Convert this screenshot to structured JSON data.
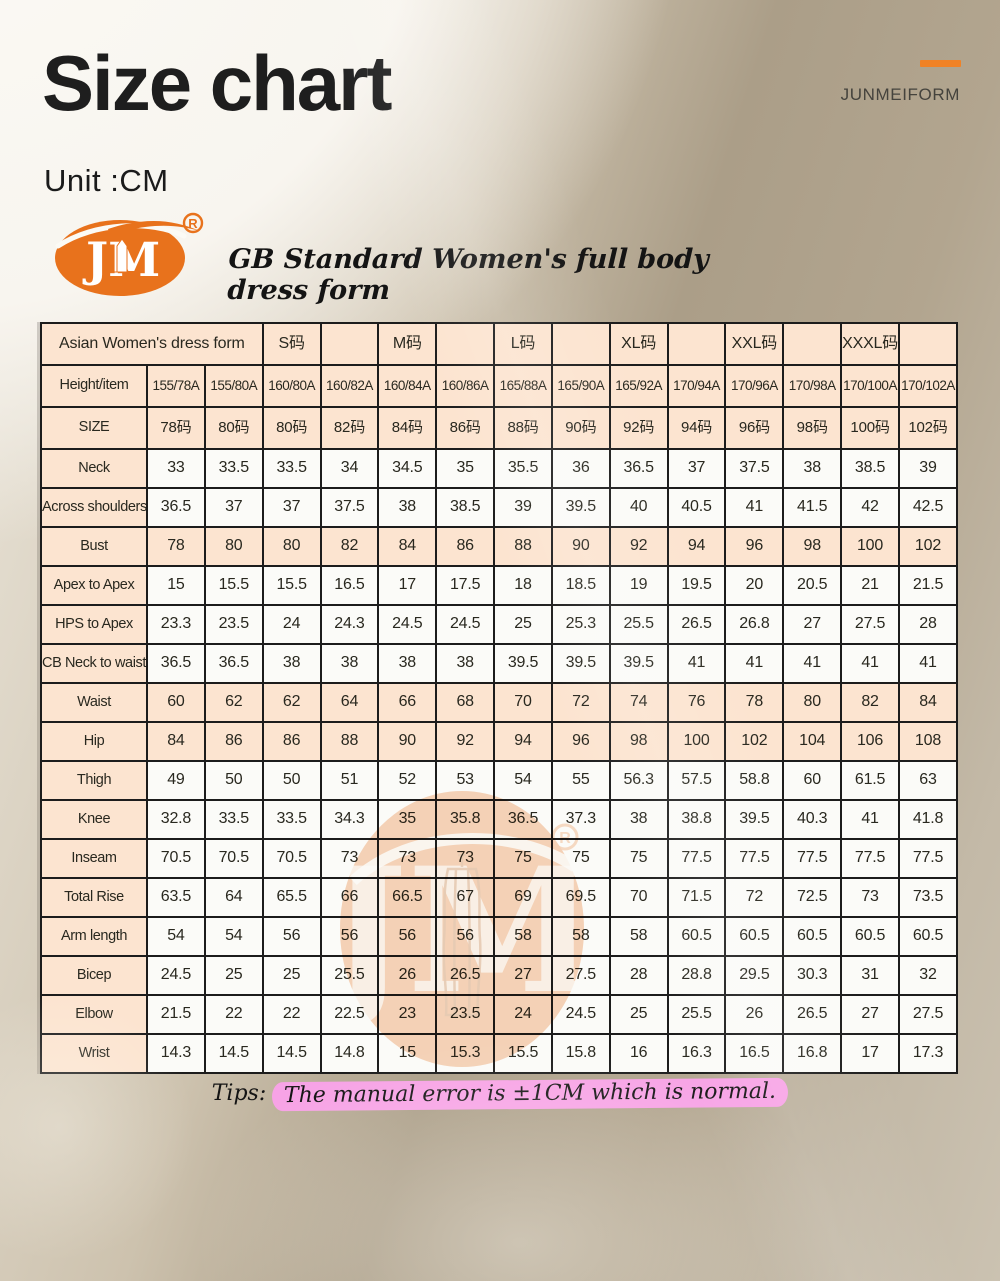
{
  "page": {
    "title": "Size chart",
    "unit_label": "Unit :CM",
    "brand_name": "JUNMEIFORM",
    "subtitle": "GB Standard Women's full body dress form",
    "logo_text": "JM",
    "logo_registered": "®",
    "accent_orange": "#f08226",
    "logo_orange": "#e8721c",
    "highlight_pink": "#f7a3e6",
    "table_peach": "#fce4d0",
    "tips_prefix": "Tips:",
    "tips_highlighted": "The manual error is ±1CM which is normal."
  },
  "table": {
    "group_header": [
      {
        "label": "Asian Women's dress form",
        "span": 3
      },
      {
        "label": "S码",
        "span": 1
      },
      {
        "label": "",
        "span": 1
      },
      {
        "label": "M码",
        "span": 1
      },
      {
        "label": "",
        "span": 1
      },
      {
        "label": "L码",
        "span": 1
      },
      {
        "label": "",
        "span": 1
      },
      {
        "label": "XL码",
        "span": 1
      },
      {
        "label": "",
        "span": 1
      },
      {
        "label": "XXL码",
        "span": 1
      },
      {
        "label": "",
        "span": 1
      },
      {
        "label": "XXXL码",
        "span": 1
      },
      {
        "label": "",
        "span": 1
      }
    ],
    "height_row": {
      "label": "Height/item",
      "values": [
        "155/78A",
        "155/80A",
        "160/80A",
        "160/82A",
        "160/84A",
        "160/86A",
        "165/88A",
        "165/90A",
        "165/92A",
        "170/94A",
        "170/96A",
        "170/98A",
        "170/100A",
        "170/102A"
      ]
    },
    "size_row": {
      "label": "SIZE",
      "values": [
        "78码",
        "80码",
        "80码",
        "82码",
        "84码",
        "86码",
        "88码",
        "90码",
        "92码",
        "94码",
        "96码",
        "98码",
        "100码",
        "102码"
      ]
    },
    "measurement_rows": [
      {
        "label": "Neck",
        "highlight": false,
        "values": [
          "33",
          "33.5",
          "33.5",
          "34",
          "34.5",
          "35",
          "35.5",
          "36",
          "36.5",
          "37",
          "37.5",
          "38",
          "38.5",
          "39"
        ]
      },
      {
        "label": "Across shoulders",
        "highlight": false,
        "values": [
          "36.5",
          "37",
          "37",
          "37.5",
          "38",
          "38.5",
          "39",
          "39.5",
          "40",
          "40.5",
          "41",
          "41.5",
          "42",
          "42.5"
        ]
      },
      {
        "label": "Bust",
        "highlight": true,
        "values": [
          "78",
          "80",
          "80",
          "82",
          "84",
          "86",
          "88",
          "90",
          "92",
          "94",
          "96",
          "98",
          "100",
          "102"
        ]
      },
      {
        "label": "Apex to Apex",
        "highlight": false,
        "values": [
          "15",
          "15.5",
          "15.5",
          "16.5",
          "17",
          "17.5",
          "18",
          "18.5",
          "19",
          "19.5",
          "20",
          "20.5",
          "21",
          "21.5"
        ]
      },
      {
        "label": "HPS to Apex",
        "highlight": false,
        "values": [
          "23.3",
          "23.5",
          "24",
          "24.3",
          "24.5",
          "24.5",
          "25",
          "25.3",
          "25.5",
          "26.5",
          "26.8",
          "27",
          "27.5",
          "28"
        ]
      },
      {
        "label": "CB Neck to waist",
        "highlight": false,
        "values": [
          "36.5",
          "36.5",
          "38",
          "38",
          "38",
          "38",
          "39.5",
          "39.5",
          "39.5",
          "41",
          "41",
          "41",
          "41",
          "41"
        ]
      },
      {
        "label": "Waist",
        "highlight": true,
        "values": [
          "60",
          "62",
          "62",
          "64",
          "66",
          "68",
          "70",
          "72",
          "74",
          "76",
          "78",
          "80",
          "82",
          "84"
        ]
      },
      {
        "label": "Hip",
        "highlight": true,
        "values": [
          "84",
          "86",
          "86",
          "88",
          "90",
          "92",
          "94",
          "96",
          "98",
          "100",
          "102",
          "104",
          "106",
          "108"
        ]
      },
      {
        "label": "Thigh",
        "highlight": false,
        "values": [
          "49",
          "50",
          "50",
          "51",
          "52",
          "53",
          "54",
          "55",
          "56.3",
          "57.5",
          "58.8",
          "60",
          "61.5",
          "63"
        ]
      },
      {
        "label": "Knee",
        "highlight": false,
        "values": [
          "32.8",
          "33.5",
          "33.5",
          "34.3",
          "35",
          "35.8",
          "36.5",
          "37.3",
          "38",
          "38.8",
          "39.5",
          "40.3",
          "41",
          "41.8"
        ]
      },
      {
        "label": "Inseam",
        "highlight": false,
        "values": [
          "70.5",
          "70.5",
          "70.5",
          "73",
          "73",
          "73",
          "75",
          "75",
          "75",
          "77.5",
          "77.5",
          "77.5",
          "77.5",
          "77.5"
        ]
      },
      {
        "label": "Total Rise",
        "highlight": false,
        "values": [
          "63.5",
          "64",
          "65.5",
          "66",
          "66.5",
          "67",
          "69",
          "69.5",
          "70",
          "71.5",
          "72",
          "72.5",
          "73",
          "73.5"
        ]
      },
      {
        "label": "Arm length",
        "highlight": false,
        "values": [
          "54",
          "54",
          "56",
          "56",
          "56",
          "56",
          "58",
          "58",
          "58",
          "60.5",
          "60.5",
          "60.5",
          "60.5",
          "60.5"
        ]
      },
      {
        "label": "Bicep",
        "highlight": false,
        "values": [
          "24.5",
          "25",
          "25",
          "25.5",
          "26",
          "26.5",
          "27",
          "27.5",
          "28",
          "28.8",
          "29.5",
          "30.3",
          "31",
          "32"
        ]
      },
      {
        "label": "Elbow",
        "highlight": false,
        "values": [
          "21.5",
          "22",
          "22",
          "22.5",
          "23",
          "23.5",
          "24",
          "24.5",
          "25",
          "25.5",
          "26",
          "26.5",
          "27",
          "27.5"
        ]
      },
      {
        "label": "Wrist",
        "highlight": false,
        "values": [
          "14.3",
          "14.5",
          "14.5",
          "14.8",
          "15",
          "15.3",
          "15.5",
          "15.8",
          "16",
          "16.3",
          "16.5",
          "16.8",
          "17",
          "17.3"
        ]
      }
    ]
  }
}
